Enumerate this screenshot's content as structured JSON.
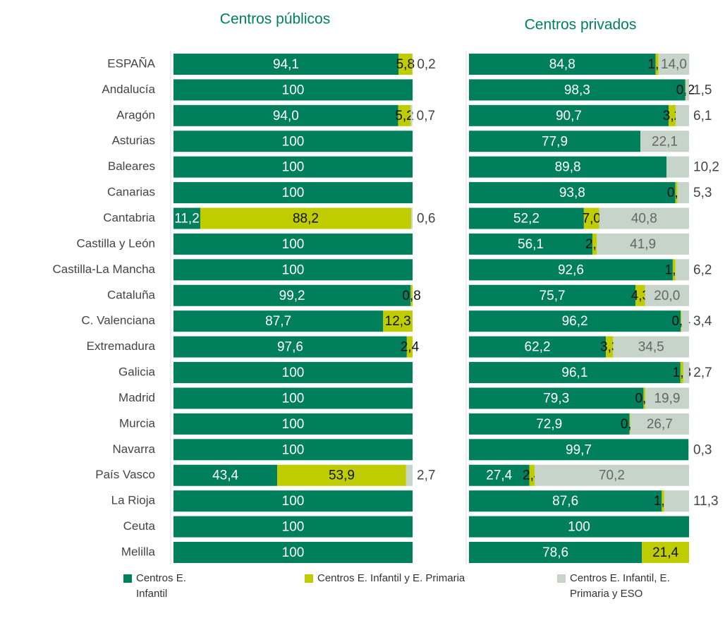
{
  "chart_data": [
    {
      "type": "bar",
      "title": "Centros públicos",
      "xlim": [
        0,
        100
      ],
      "categories": [
        "ESPAÑA",
        "Andalucía",
        "Aragón",
        "Asturias",
        "Baleares",
        "Canarias",
        "Cantabria",
        "Castilla y León",
        "Castilla-La Mancha",
        "Cataluña",
        "C. Valenciana",
        "Extremadura",
        "Galicia",
        "Madrid",
        "Murcia",
        "Navarra",
        "País Vasco",
        "La Rioja",
        "Ceuta",
        "Melilla"
      ],
      "series": [
        {
          "name": "Centros E. Infantil",
          "color": "#007f5c",
          "values": [
            94.1,
            100,
            94.0,
            100,
            100,
            100,
            11.2,
            100,
            100,
            99.2,
            87.7,
            97.6,
            100,
            100,
            100,
            100,
            43.4,
            100,
            100,
            100
          ],
          "value_labels": [
            "94,1",
            "100",
            "94,0",
            "100",
            "100",
            "100",
            "11,2",
            "100",
            "100",
            "99,2",
            "87,7",
            "97,6",
            "100",
            "100",
            "100",
            "100",
            "43,4",
            "100",
            "100",
            "100"
          ]
        },
        {
          "name": "Centros E. Infantil y E. Primaria",
          "color": "#bfcd00",
          "values": [
            5.8,
            null,
            5.2,
            null,
            null,
            null,
            88.2,
            null,
            null,
            0.8,
            12.3,
            2.4,
            null,
            null,
            null,
            null,
            53.9,
            null,
            null,
            null
          ],
          "value_labels": [
            "5,8",
            null,
            "5,2",
            null,
            null,
            null,
            "88,2",
            null,
            null,
            "0,8",
            "12,3",
            "2,4",
            null,
            null,
            null,
            null,
            "53,9",
            null,
            null,
            null
          ]
        },
        {
          "name": "Centros E. Infantil, E. Primaria y ESO",
          "color": "#c6d4ca",
          "values": [
            0.2,
            null,
            0.7,
            null,
            null,
            null,
            0.6,
            null,
            null,
            null,
            null,
            null,
            null,
            null,
            null,
            null,
            2.7,
            null,
            null,
            null
          ],
          "value_labels": [
            "0,2",
            null,
            "0,7",
            null,
            null,
            null,
            "0,6",
            null,
            null,
            null,
            null,
            null,
            null,
            null,
            null,
            null,
            "2,7",
            null,
            null,
            null
          ]
        }
      ]
    },
    {
      "type": "bar",
      "title": "Centros privados",
      "xlim": [
        0,
        100
      ],
      "series": [
        {
          "color": "#007f5c",
          "values": [
            84.8,
            98.3,
            90.7,
            77.9,
            89.8,
            93.8,
            52.2,
            56.1,
            92.6,
            75.7,
            96.2,
            62.2,
            96.1,
            79.3,
            72.9,
            99.7,
            27.4,
            87.6,
            100,
            78.6
          ],
          "value_labels": [
            "84,8",
            "98,3",
            "90,7",
            "77,9",
            "89,8",
            "93,8",
            "52,2",
            "56,1",
            "92,6",
            "75,7",
            "96,2",
            "62,2",
            "96,1",
            "79,3",
            "72,9",
            "99,7",
            "27,4",
            "87,6",
            "100",
            "78,6"
          ]
        },
        {
          "color": "#bfcd00",
          "values": [
            1.3,
            0.2,
            3.2,
            null,
            null,
            0.9,
            7.0,
            2.0,
            1.2,
            4.3,
            0.4,
            3.3,
            1.3,
            0.8,
            0.4,
            null,
            2.4,
            1.1,
            null,
            21.4
          ],
          "value_labels": [
            "1,3",
            "0,2",
            "3,2",
            null,
            null,
            "0,9",
            "7,0",
            "2,0",
            "1,2",
            "4,3",
            "0,4",
            "3,3",
            "1,3",
            "0,8",
            "0,4",
            null,
            "2,4",
            "1,1",
            null,
            "21,4"
          ]
        },
        {
          "color": "#c6d4ca",
          "values": [
            14.0,
            1.5,
            6.1,
            22.1,
            10.2,
            5.3,
            40.8,
            41.9,
            6.2,
            20.0,
            3.4,
            34.5,
            2.7,
            19.9,
            26.7,
            0.3,
            70.2,
            11.3,
            null,
            null
          ],
          "value_labels": [
            "14,0",
            "1,5",
            "6,1",
            "22,1",
            "10,2",
            "5,3",
            "40,8",
            "41,9",
            "6,2",
            "20,0",
            "3,4",
            "34,5",
            "2,7",
            "19,9",
            "26,7",
            "0,3",
            "70,2",
            "11,3",
            null,
            null
          ]
        }
      ]
    }
  ]
}
